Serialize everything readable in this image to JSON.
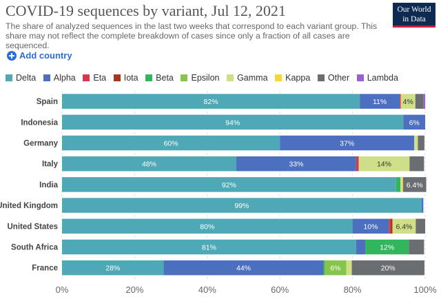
{
  "title": "COVID-19 sequences by variant, Jul 12, 2021",
  "subtitle": "The share of analyzed sequences in the last two weeks that correspond to each variant group. This share may not reflect the complete breakdown of cases since only a fraction of all cases are sequenced.",
  "logo": {
    "line1": "Our World",
    "line2": "in Data"
  },
  "add_country_label": "Add country",
  "colors": {
    "Delta": "#4ea8b6",
    "Alpha": "#4c6fbf",
    "Eta": "#d6394c",
    "Iota": "#a4381e",
    "Beta": "#31b65d",
    "Epsilon": "#86c54b",
    "Gamma": "#cfdf88",
    "Kappa": "#f5d73b",
    "Other": "#6a6e73",
    "Lambda": "#9a5fd0"
  },
  "chart_data": {
    "type": "bar",
    "orientation": "horizontal",
    "stacked": true,
    "categories": [
      "Spain",
      "Indonesia",
      "Germany",
      "Italy",
      "India",
      "United Kingdom",
      "United States",
      "South Africa",
      "France"
    ],
    "series": [
      {
        "name": "Delta",
        "values": [
          82,
          94,
          60,
          48,
          92,
          99,
          80,
          81,
          28
        ]
      },
      {
        "name": "Alpha",
        "values": [
          11,
          6,
          37,
          33,
          0,
          0.5,
          10,
          2.5,
          44
        ]
      },
      {
        "name": "Eta",
        "values": [
          0.3,
          0,
          0,
          0.7,
          0,
          0,
          0.5,
          0,
          0
        ]
      },
      {
        "name": "Iota",
        "values": [
          0,
          0,
          0,
          0,
          0,
          0,
          0.5,
          0,
          0
        ]
      },
      {
        "name": "Beta",
        "values": [
          0,
          0,
          0,
          0,
          1.2,
          0,
          0,
          12,
          0.3
        ]
      },
      {
        "name": "Epsilon",
        "values": [
          0,
          0,
          0,
          0,
          0,
          0,
          0,
          0,
          6
        ]
      },
      {
        "name": "Gamma",
        "values": [
          4,
          0,
          1,
          14,
          0.4,
          0,
          6.4,
          0,
          1.5
        ]
      },
      {
        "name": "Kappa",
        "values": [
          0,
          0,
          0,
          0,
          0.3,
          0,
          0,
          0,
          0
        ]
      },
      {
        "name": "Other",
        "values": [
          2.2,
          0,
          1.8,
          4,
          6.4,
          0,
          2.6,
          4.2,
          20
        ]
      },
      {
        "name": "Lambda",
        "values": [
          0.5,
          0,
          0,
          0,
          0,
          0,
          0,
          0,
          0
        ]
      }
    ],
    "data_labels": [
      [
        "82%",
        "11%",
        "",
        "",
        "",
        "",
        "4%",
        "",
        "",
        ""
      ],
      [
        "94%",
        "6%",
        "",
        "",
        "",
        "",
        "",
        "",
        "",
        ""
      ],
      [
        "60%",
        "37%",
        "",
        "",
        "",
        "",
        "",
        "",
        "",
        ""
      ],
      [
        "48%",
        "33%",
        "",
        "",
        "",
        "",
        "14%",
        "",
        "",
        ""
      ],
      [
        "92%",
        "",
        "",
        "",
        "",
        "",
        "",
        "",
        "6.4%",
        ""
      ],
      [
        "99%",
        "",
        "",
        "",
        "",
        "",
        "",
        "",
        "",
        ""
      ],
      [
        "80%",
        "10%",
        "",
        "",
        "",
        "",
        "6.4%",
        "",
        "",
        ""
      ],
      [
        "81%",
        "",
        "",
        "",
        "12%",
        "",
        "",
        "",
        "",
        ""
      ],
      [
        "28%",
        "44%",
        "",
        "",
        "",
        "6%",
        "",
        "",
        "20%",
        ""
      ]
    ],
    "xticks": [
      "0%",
      "20%",
      "40%",
      "60%",
      "80%",
      "100%"
    ],
    "xlim": [
      0,
      100
    ],
    "grid": true,
    "legend_position": "top"
  }
}
